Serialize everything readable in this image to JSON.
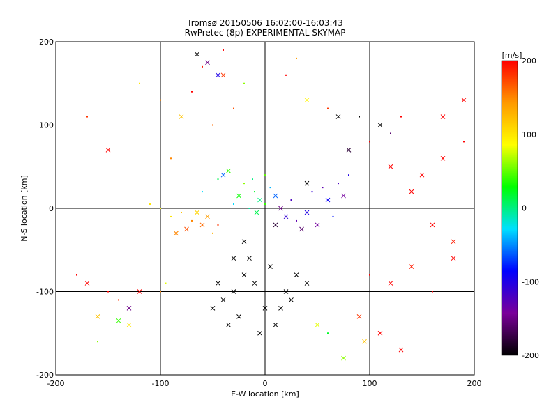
{
  "chart_data": {
    "type": "scatter",
    "title_line1": "Tromsø 20150506 16:02:00-16:03:43",
    "title_line2": "RwPretec (8p) EXPERIMENTAL SKYMAP",
    "xlabel": "E-W location [km]",
    "ylabel": "N-S location [km]",
    "xlim": [
      -200,
      200
    ],
    "ylim": [
      -200,
      200
    ],
    "xticks": [
      "-200",
      "-100",
      "0",
      "100",
      "200"
    ],
    "yticks": [
      "-200",
      "-100",
      "0",
      "100",
      "200"
    ],
    "grid": true,
    "colorbar": {
      "label": "[m/s]",
      "range": [
        -200,
        200
      ],
      "ticks": [
        "200",
        "100",
        "0",
        "-100",
        "-200"
      ],
      "colormap": [
        "#000000",
        "#7a0099",
        "#0000ff",
        "#00e0ff",
        "#00ff00",
        "#ffff00",
        "#ff9900",
        "#ff0000"
      ]
    },
    "marker_types": [
      "dot",
      "x"
    ],
    "series": [
      {
        "values": [
          [
            -40,
            160,
            180,
            "x"
          ],
          [
            -60,
            170,
            190,
            "dot"
          ],
          [
            -100,
            130,
            150,
            "dot"
          ],
          [
            -70,
            140,
            200,
            "dot"
          ],
          [
            -30,
            120,
            170,
            "dot"
          ],
          [
            -80,
            110,
            120,
            "x"
          ],
          [
            -120,
            150,
            100,
            "dot"
          ],
          [
            -20,
            150,
            60,
            "dot"
          ],
          [
            -50,
            100,
            160,
            "dot"
          ],
          [
            20,
            160,
            200,
            "dot"
          ],
          [
            40,
            130,
            90,
            "x"
          ],
          [
            30,
            180,
            140,
            "dot"
          ],
          [
            -150,
            70,
            200,
            "x"
          ],
          [
            -170,
            110,
            180,
            "dot"
          ],
          [
            -90,
            60,
            150,
            "dot"
          ],
          [
            60,
            120,
            180,
            "dot"
          ],
          [
            -40,
            190,
            200,
            "dot"
          ],
          [
            -65,
            185,
            -200,
            "x"
          ],
          [
            -55,
            175,
            -150,
            "x"
          ],
          [
            -45,
            160,
            -100,
            "x"
          ]
        ]
      },
      {
        "values": [
          [
            -10,
            20,
            20,
            "dot"
          ],
          [
            -5,
            10,
            0,
            "x"
          ],
          [
            0,
            5,
            40,
            "dot"
          ],
          [
            -15,
            0,
            -10,
            "dot"
          ],
          [
            -20,
            30,
            60,
            "dot"
          ],
          [
            5,
            25,
            -40,
            "dot"
          ],
          [
            -8,
            -5,
            10,
            "x"
          ],
          [
            10,
            15,
            -60,
            "x"
          ],
          [
            -25,
            15,
            30,
            "x"
          ],
          [
            0,
            40,
            50,
            "dot"
          ],
          [
            -30,
            5,
            -30,
            "dot"
          ],
          [
            -12,
            35,
            0,
            "dot"
          ],
          [
            -40,
            40,
            -60,
            "x"
          ],
          [
            -60,
            20,
            -30,
            "dot"
          ],
          [
            -45,
            35,
            10,
            "dot"
          ],
          [
            -35,
            45,
            40,
            "x"
          ]
        ]
      },
      {
        "values": [
          [
            20,
            -10,
            -110,
            "x"
          ],
          [
            30,
            -15,
            -130,
            "dot"
          ],
          [
            40,
            -5,
            -100,
            "x"
          ],
          [
            25,
            10,
            -120,
            "dot"
          ],
          [
            50,
            -20,
            -140,
            "x"
          ],
          [
            60,
            10,
            -90,
            "x"
          ],
          [
            45,
            20,
            -110,
            "dot"
          ],
          [
            70,
            30,
            -120,
            "dot"
          ],
          [
            35,
            -25,
            -160,
            "x"
          ],
          [
            55,
            25,
            -130,
            "dot"
          ],
          [
            15,
            0,
            -150,
            "x"
          ],
          [
            80,
            40,
            -100,
            "dot"
          ],
          [
            65,
            -10,
            -80,
            "dot"
          ],
          [
            75,
            15,
            -140,
            "x"
          ],
          [
            10,
            -20,
            -180,
            "x"
          ],
          [
            40,
            30,
            -200,
            "x"
          ]
        ]
      },
      {
        "values": [
          [
            -60,
            -20,
            160,
            "x"
          ],
          [
            -70,
            -15,
            150,
            "dot"
          ],
          [
            -55,
            -10,
            140,
            "x"
          ],
          [
            -80,
            -5,
            120,
            "dot"
          ],
          [
            -75,
            -25,
            170,
            "x"
          ],
          [
            -50,
            -30,
            130,
            "dot"
          ],
          [
            -90,
            -10,
            100,
            "dot"
          ],
          [
            -65,
            -5,
            110,
            "x"
          ],
          [
            -100,
            0,
            90,
            "dot"
          ],
          [
            -85,
            -30,
            150,
            "x"
          ],
          [
            -45,
            -20,
            180,
            "dot"
          ],
          [
            -110,
            5,
            100,
            "dot"
          ]
        ]
      },
      {
        "values": [
          [
            -20,
            -80,
            -200,
            "x"
          ],
          [
            -30,
            -100,
            -200,
            "x"
          ],
          [
            -10,
            -90,
            -200,
            "x"
          ],
          [
            -40,
            -110,
            -200,
            "x"
          ],
          [
            0,
            -120,
            -200,
            "x"
          ],
          [
            -25,
            -130,
            -200,
            "x"
          ],
          [
            10,
            -140,
            -200,
            "x"
          ],
          [
            20,
            -100,
            -200,
            "x"
          ],
          [
            30,
            -80,
            -200,
            "x"
          ],
          [
            -15,
            -60,
            -200,
            "x"
          ],
          [
            -35,
            -140,
            -200,
            "x"
          ],
          [
            5,
            -70,
            -200,
            "x"
          ],
          [
            -50,
            -120,
            -200,
            "x"
          ],
          [
            15,
            -120,
            -200,
            "x"
          ],
          [
            -5,
            -150,
            -200,
            "x"
          ],
          [
            -45,
            -90,
            -200,
            "x"
          ],
          [
            -20,
            -40,
            -200,
            "x"
          ],
          [
            -30,
            -60,
            -200,
            "x"
          ],
          [
            40,
            -90,
            -200,
            "x"
          ],
          [
            25,
            -110,
            -200,
            "x"
          ]
        ]
      },
      {
        "values": [
          [
            -170,
            -90,
            200,
            "x"
          ],
          [
            -150,
            -100,
            200,
            "dot"
          ],
          [
            -130,
            -120,
            -150,
            "x"
          ],
          [
            -160,
            -130,
            120,
            "x"
          ],
          [
            -140,
            -110,
            180,
            "dot"
          ],
          [
            -120,
            -100,
            200,
            "x"
          ],
          [
            -180,
            -80,
            200,
            "dot"
          ],
          [
            -160,
            -160,
            60,
            "dot"
          ],
          [
            -130,
            -140,
            100,
            "x"
          ],
          [
            -100,
            -100,
            150,
            "dot"
          ],
          [
            -140,
            -135,
            40,
            "x"
          ],
          [
            -95,
            -90,
            80,
            "dot"
          ]
        ]
      },
      {
        "values": [
          [
            120,
            -90,
            200,
            "x"
          ],
          [
            100,
            -80,
            200,
            "dot"
          ],
          [
            140,
            -70,
            190,
            "x"
          ],
          [
            110,
            -150,
            200,
            "x"
          ],
          [
            130,
            -170,
            200,
            "x"
          ],
          [
            90,
            -130,
            180,
            "x"
          ],
          [
            160,
            -100,
            200,
            "dot"
          ],
          [
            180,
            -60,
            200,
            "x"
          ],
          [
            150,
            40,
            200,
            "x"
          ],
          [
            170,
            60,
            200,
            "x"
          ],
          [
            190,
            80,
            200,
            "dot"
          ],
          [
            120,
            50,
            200,
            "x"
          ],
          [
            140,
            20,
            200,
            "x"
          ],
          [
            160,
            -20,
            200,
            "x"
          ],
          [
            180,
            -40,
            190,
            "x"
          ],
          [
            100,
            80,
            200,
            "dot"
          ],
          [
            110,
            100,
            -200,
            "x"
          ],
          [
            90,
            110,
            -200,
            "dot"
          ],
          [
            120,
            90,
            -160,
            "dot"
          ],
          [
            80,
            70,
            -180,
            "x"
          ],
          [
            70,
            110,
            -200,
            "x"
          ],
          [
            130,
            110,
            200,
            "dot"
          ],
          [
            190,
            130,
            200,
            "x"
          ],
          [
            170,
            110,
            200,
            "x"
          ],
          [
            95,
            -160,
            120,
            "x"
          ],
          [
            75,
            -180,
            60,
            "x"
          ],
          [
            60,
            -150,
            20,
            "dot"
          ],
          [
            50,
            -140,
            80,
            "x"
          ]
        ]
      }
    ]
  }
}
